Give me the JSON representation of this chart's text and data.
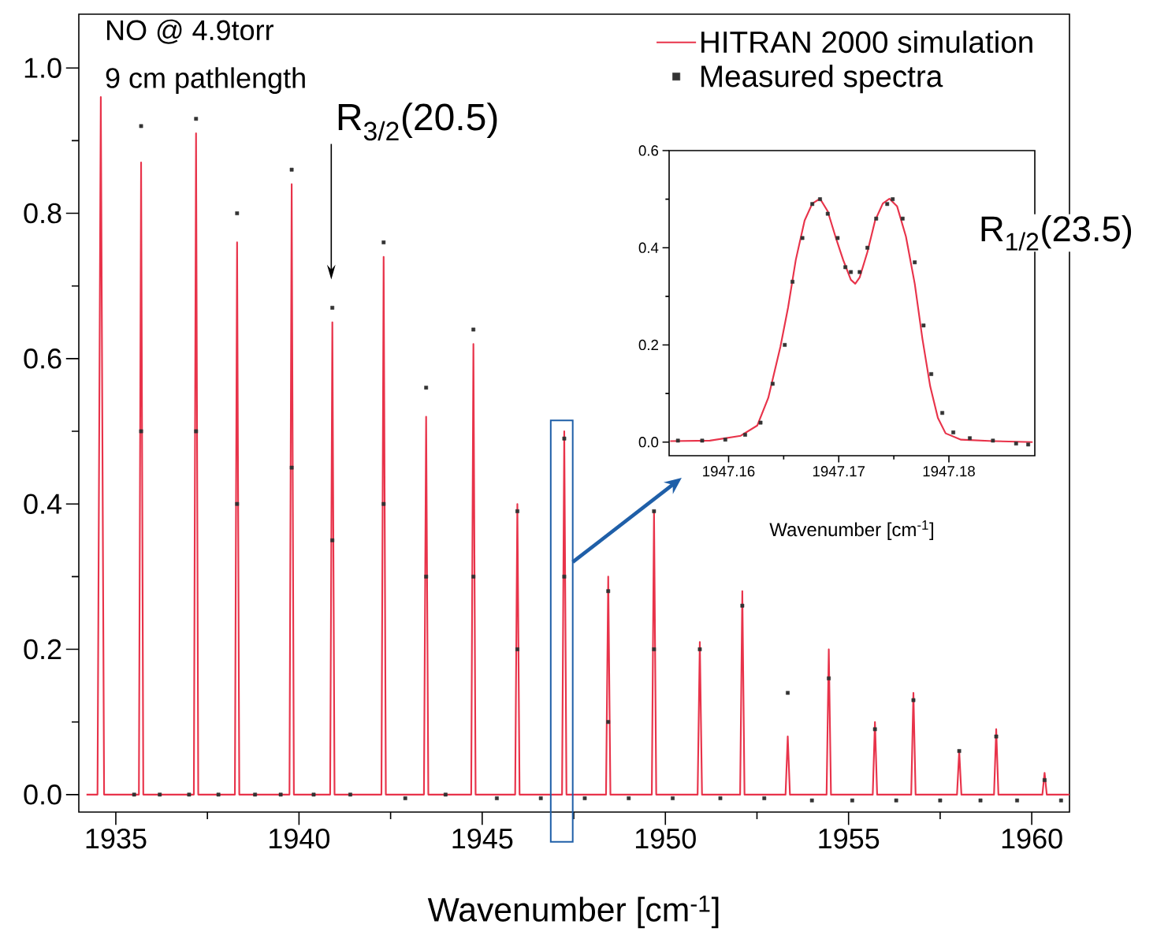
{
  "chart_data": [
    {
      "type": "line",
      "xlabel": "Wavenumber [cm$^{-1}$]",
      "xlim": [
        1933.99,
        1961.03
      ],
      "ylim": [
        -0.024,
        1.074
      ],
      "xticks": [
        1935,
        1940,
        1945,
        1950,
        1955,
        1960
      ],
      "yticks": [
        {
          "value": 0,
          "label": "0.0"
        },
        {
          "value": 0.2,
          "label": "0.2"
        },
        {
          "value": 0.4,
          "label": "0.4"
        },
        {
          "value": 0.6,
          "label": "0.6"
        },
        {
          "value": 0.8,
          "label": "0.8"
        },
        {
          "value": 1,
          "label": "1.0"
        }
      ],
      "legend": "top right",
      "series": [
        {
          "name": "HITRAN 2000 simulation",
          "marker": "none",
          "color": "#e8334a",
          "x": [
            1934.2,
            1934.5,
            1934.59,
            1934.68,
            1935.63,
            1935.69,
            1935.75,
            1937.13,
            1937.19,
            1937.25,
            1938.25,
            1938.31,
            1938.37,
            1939.74,
            1939.8,
            1939.86,
            1940.85,
            1940.91,
            1940.97,
            1942.25,
            1942.31,
            1942.37,
            1943.41,
            1943.47,
            1943.53,
            1944.7,
            1944.76,
            1944.82,
            1945.9,
            1945.96,
            1946.02,
            1947.18,
            1947.24,
            1947.3,
            1948.38,
            1948.44,
            1948.5,
            1949.63,
            1949.69,
            1949.75,
            1950.88,
            1950.94,
            1951.0,
            1952.04,
            1952.1,
            1952.16,
            1953.28,
            1953.34,
            1953.4,
            1954.4,
            1954.46,
            1954.52,
            1955.66,
            1955.72,
            1955.78,
            1956.71,
            1956.77,
            1956.83,
            1957.96,
            1958.02,
            1958.08,
            1958.97,
            1959.03,
            1959.09,
            1960.29,
            1960.35,
            1960.41,
            1961.03
          ],
          "values": [
            0,
            0,
            0.96,
            0,
            0,
            0.87,
            0,
            0,
            0.91,
            0,
            0,
            0.76,
            0,
            0,
            0.84,
            0,
            0,
            0.65,
            0,
            0,
            0.74,
            0,
            0,
            0.52,
            0,
            0,
            0.62,
            0,
            0,
            0.4,
            0,
            0,
            0.5,
            0,
            0,
            0.3,
            0,
            0,
            0.39,
            0,
            0,
            0.21,
            0,
            0,
            0.28,
            0,
            0,
            0.08,
            0,
            0,
            0.2,
            0,
            0,
            0.1,
            0,
            0,
            0.14,
            0,
            0,
            0.06,
            0,
            0,
            0.09,
            0,
            0,
            0.03,
            0,
            0
          ]
        },
        {
          "name": "Measured spectra",
          "type": "scatter",
          "marker": "square",
          "color": "#333333",
          "x": [
            1935.5,
            1935.69,
            1935.69,
            1936.2,
            1937.0,
            1937.19,
            1937.19,
            1937.8,
            1938.31,
            1938.31,
            1938.8,
            1939.5,
            1939.8,
            1939.8,
            1940.4,
            1940.91,
            1940.91,
            1941.4,
            1942.31,
            1942.31,
            1942.9,
            1943.47,
            1943.47,
            1944.0,
            1944.76,
            1944.76,
            1945.4,
            1945.96,
            1945.96,
            1946.6,
            1947.24,
            1947.24,
            1947.8,
            1948.44,
            1948.44,
            1949.0,
            1949.69,
            1949.69,
            1950.2,
            1950.94,
            1951.5,
            1952.1,
            1952.7,
            1953.34,
            1954.0,
            1954.46,
            1955.1,
            1955.72,
            1956.3,
            1956.77,
            1957.5,
            1958.02,
            1958.6,
            1959.03,
            1959.6,
            1960.35,
            1960.8
          ],
          "values": [
            0,
            0.92,
            0.5,
            0,
            0,
            0.93,
            0.5,
            0,
            0.8,
            0.4,
            0,
            0,
            0.86,
            0.45,
            0,
            0.67,
            0.35,
            0,
            0.76,
            0.4,
            -0.005,
            0.56,
            0.3,
            0,
            0.64,
            0.3,
            -0.005,
            0.39,
            0.2,
            -0.005,
            0.49,
            0.3,
            -0.005,
            0.28,
            0.1,
            -0.005,
            0.39,
            0.2,
            -0.005,
            0.2,
            -0.005,
            0.26,
            -0.005,
            0.14,
            -0.008,
            0.16,
            -0.008,
            0.09,
            -0.008,
            0.13,
            -0.008,
            0.06,
            -0.008,
            0.08,
            -0.008,
            0.02,
            -0.008
          ]
        }
      ],
      "annotations": [
        "NO @ 4.9torr",
        "9 cm pathlength",
        "R$_{3/2}$(20.5)"
      ]
    },
    {
      "type": "line",
      "xlabel": "Wavenumber [cm$^{-1}$]",
      "xlim": [
        1947.1546,
        1947.1878
      ],
      "ylim": [
        -0.028,
        0.6
      ],
      "xticks": [
        1947.16,
        1947.17,
        1947.18
      ],
      "yticks": [
        {
          "value": 0,
          "label": "0.0"
        },
        {
          "value": 0.2,
          "label": "0.2"
        },
        {
          "value": 0.4,
          "label": "0.4"
        },
        {
          "value": 0.6,
          "label": "0.6"
        }
      ],
      "series": [
        {
          "marker": "none",
          "color": "#e8334a",
          "x": [
            1947.1547,
            1947.1583,
            1947.1611,
            1947.1626,
            1947.1636,
            1947.1647,
            1947.1654,
            1947.1661,
            1947.1669,
            1947.1676,
            1947.1683,
            1947.169,
            1947.1697,
            1947.1704,
            1947.1711,
            1947.1715,
            1947.1719,
            1947.1726,
            1947.1733,
            1947.174,
            1947.1746,
            1947.1753,
            1947.1761,
            1947.1769,
            1947.1776,
            1947.1783,
            1947.179,
            1947.1797,
            1947.1811,
            1947.184,
            1947.1876
          ],
          "values": [
            0.002,
            0.003,
            0.013,
            0.034,
            0.091,
            0.196,
            0.277,
            0.375,
            0.456,
            0.491,
            0.501,
            0.475,
            0.423,
            0.375,
            0.334,
            0.326,
            0.339,
            0.391,
            0.456,
            0.491,
            0.501,
            0.485,
            0.423,
            0.326,
            0.212,
            0.115,
            0.05,
            0.018,
            0.005,
            0.002,
            0
          ]
        },
        {
          "type": "scatter",
          "marker": "square",
          "color": "#333333",
          "x": [
            1947.1554,
            1947.1576,
            1947.1597,
            1947.1615,
            1947.1629,
            1947.164,
            1947.1651,
            1947.1658,
            1947.1667,
            1947.1676,
            1947.1683,
            1947.169,
            1947.1699,
            1947.1706,
            1947.1711,
            1947.1719,
            1947.1726,
            1947.1734,
            1947.1744,
            1947.1749,
            1947.1758,
            1947.1769,
            1947.1777,
            1947.1784,
            1947.1794,
            1947.1804,
            1947.1819,
            1947.184,
            1947.1861,
            1947.1872
          ],
          "values": [
            0.003,
            0.003,
            0.005,
            0.015,
            0.04,
            0.12,
            0.2,
            0.33,
            0.42,
            0.49,
            0.5,
            0.47,
            0.42,
            0.36,
            0.35,
            0.35,
            0.4,
            0.46,
            0.49,
            0.5,
            0.46,
            0.37,
            0.24,
            0.14,
            0.06,
            0.02,
            0.008,
            0.003,
            -0.003,
            -0.005
          ]
        }
      ],
      "annotations": [
        "R$_{1/2}$(23.5)"
      ]
    }
  ]
}
